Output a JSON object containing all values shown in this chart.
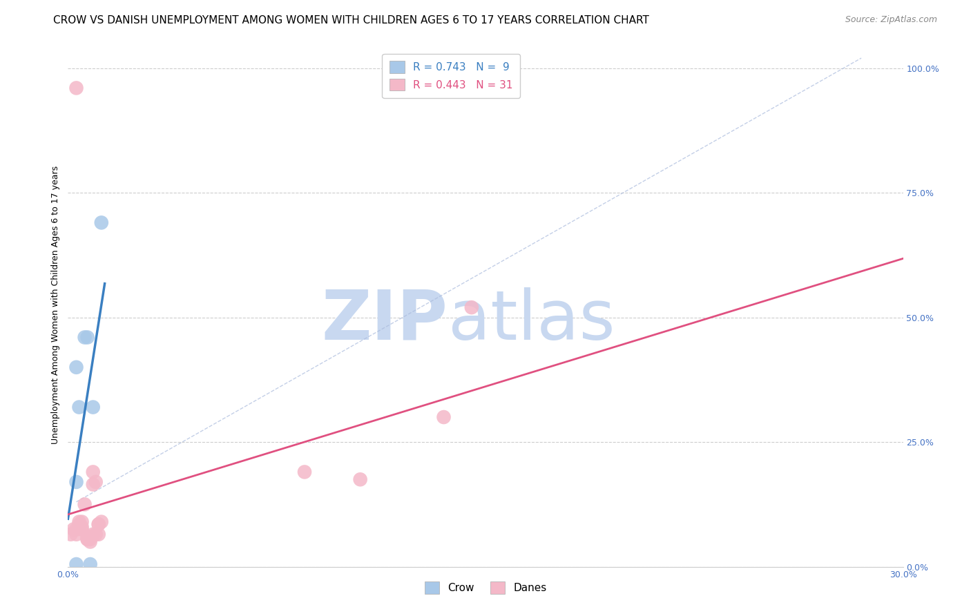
{
  "title": "CROW VS DANISH UNEMPLOYMENT AMONG WOMEN WITH CHILDREN AGES 6 TO 17 YEARS CORRELATION CHART",
  "source": "Source: ZipAtlas.com",
  "ylabel": "Unemployment Among Women with Children Ages 6 to 17 years",
  "xlim": [
    0.0,
    0.3
  ],
  "ylim": [
    0.0,
    1.05
  ],
  "xticks": [
    0.0,
    0.05,
    0.1,
    0.15,
    0.2,
    0.25,
    0.3
  ],
  "xticklabels": [
    "0.0%",
    "",
    "",
    "",
    "",
    "",
    "30.0%"
  ],
  "yticks_right": [
    0.0,
    0.25,
    0.5,
    0.75,
    1.0
  ],
  "ytick_right_labels": [
    "0.0%",
    "25.0%",
    "50.0%",
    "75.0%",
    "100.0%"
  ],
  "crow_points": [
    [
      0.003,
      0.17
    ],
    [
      0.003,
      0.4
    ],
    [
      0.004,
      0.32
    ],
    [
      0.006,
      0.46
    ],
    [
      0.007,
      0.46
    ],
    [
      0.009,
      0.32
    ],
    [
      0.012,
      0.69
    ],
    [
      0.008,
      0.005
    ],
    [
      0.003,
      0.005
    ]
  ],
  "danes_points": [
    [
      0.001,
      0.065
    ],
    [
      0.002,
      0.075
    ],
    [
      0.003,
      0.065
    ],
    [
      0.003,
      0.075
    ],
    [
      0.004,
      0.085
    ],
    [
      0.004,
      0.08
    ],
    [
      0.004,
      0.09
    ],
    [
      0.005,
      0.08
    ],
    [
      0.005,
      0.075
    ],
    [
      0.005,
      0.09
    ],
    [
      0.006,
      0.125
    ],
    [
      0.007,
      0.055
    ],
    [
      0.007,
      0.055
    ],
    [
      0.007,
      0.06
    ],
    [
      0.008,
      0.06
    ],
    [
      0.008,
      0.055
    ],
    [
      0.008,
      0.05
    ],
    [
      0.009,
      0.065
    ],
    [
      0.009,
      0.19
    ],
    [
      0.009,
      0.165
    ],
    [
      0.01,
      0.17
    ],
    [
      0.01,
      0.065
    ],
    [
      0.011,
      0.065
    ],
    [
      0.011,
      0.085
    ],
    [
      0.011,
      0.085
    ],
    [
      0.012,
      0.09
    ],
    [
      0.003,
      0.96
    ],
    [
      0.085,
      0.19
    ],
    [
      0.105,
      0.175
    ],
    [
      0.135,
      0.3
    ],
    [
      0.145,
      0.52
    ]
  ],
  "crow_color": "#a8c8e8",
  "crow_line_color": "#3a7fc1",
  "danes_color": "#f4b8c8",
  "danes_line_color": "#e05080",
  "crow_R": 0.743,
  "crow_N": 9,
  "danes_R": 0.443,
  "danes_N": 31,
  "watermark_zip": "ZIP",
  "watermark_atlas": "atlas",
  "watermark_zip_color": "#c8d8f0",
  "watermark_atlas_color": "#c8d8f0",
  "grid_color": "#cccccc",
  "title_fontsize": 11,
  "axis_label_fontsize": 9,
  "tick_fontsize": 9,
  "legend_fontsize": 11
}
